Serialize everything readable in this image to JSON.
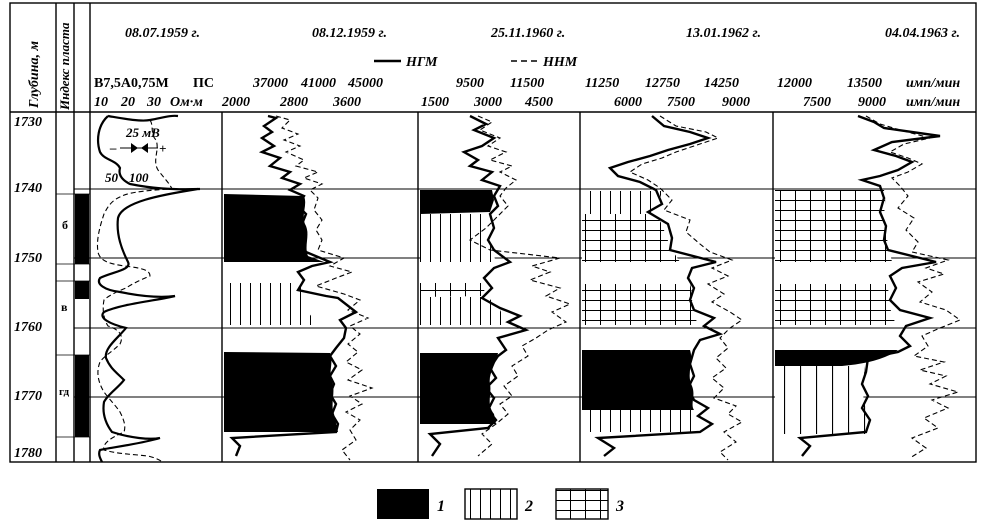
{
  "figure": {
    "dates": [
      "08.07.1959 г.",
      "08.12.1959 г.",
      "25.11.1960 г.",
      "13.01.1962 г.",
      "04.04.1963 г."
    ],
    "side_headers": {
      "depth": "Глубина, м",
      "formation": "Индекс пласта"
    },
    "curve_legend": {
      "ngm": "НГМ",
      "nnm": "ННМ"
    },
    "depths": [
      "1730",
      "1740",
      "1750",
      "1760",
      "1770",
      "1780"
    ],
    "formations": [
      "б",
      "в",
      "гд"
    ],
    "resistivity_track": {
      "header": "В7,5А0,75М",
      "sp_label": "ПС",
      "scale": [
        "10",
        "20",
        "30"
      ],
      "unit": "Ом·м",
      "sp_scale": "25 мВ",
      "minus": "–",
      "plus": "+",
      "res_scale": [
        "50",
        "100"
      ]
    },
    "tracks": [
      {
        "top_scale": [
          "37000",
          "41000",
          "45000"
        ],
        "bottom_scale": [
          "2000",
          "2800",
          "3600"
        ]
      },
      {
        "top_scale": [
          "9500",
          "11500"
        ],
        "bottom_scale": [
          "1500",
          "3000",
          "4500"
        ]
      },
      {
        "top_scale": [
          "11250",
          "12750",
          "14250"
        ],
        "bottom_scale": [
          "6000",
          "7500",
          "9000"
        ]
      },
      {
        "top_scale": [
          "12000",
          "13500"
        ],
        "bottom_scale": [
          "7500",
          "9000"
        ],
        "units": [
          "имп/мин",
          "имп/мин"
        ]
      }
    ],
    "legend": [
      {
        "number": "1",
        "fill": "solid"
      },
      {
        "number": "2",
        "fill": "vertical-hatch"
      },
      {
        "number": "3",
        "fill": "grid-hatch"
      }
    ]
  }
}
